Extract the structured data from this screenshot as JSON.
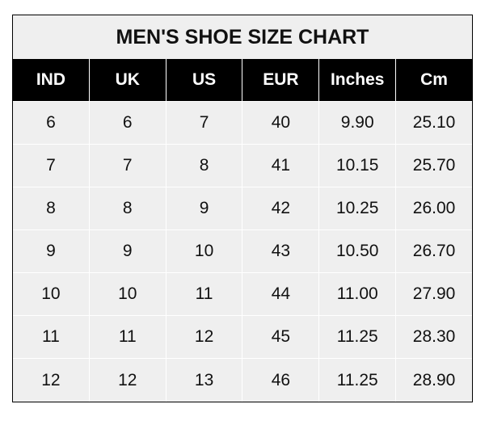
{
  "title": "MEN'S SHOE SIZE CHART",
  "headers": [
    "IND",
    "UK",
    "US",
    "EUR",
    "Inches",
    "Cm"
  ],
  "rows": [
    [
      "6",
      "6",
      "7",
      "40",
      "9.90",
      "25.10"
    ],
    [
      "7",
      "7",
      "8",
      "41",
      "10.15",
      "25.70"
    ],
    [
      "8",
      "8",
      "9",
      "42",
      "10.25",
      "26.00"
    ],
    [
      "9",
      "9",
      "10",
      "43",
      "10.50",
      "26.70"
    ],
    [
      "10",
      "10",
      "11",
      "44",
      "11.00",
      "27.90"
    ],
    [
      "11",
      "11",
      "12",
      "45",
      "11.25",
      "28.30"
    ],
    [
      "12",
      "12",
      "13",
      "46",
      "11.25",
      "28.90"
    ]
  ],
  "colors": {
    "header_bg": "#000000",
    "header_text": "#ffffff",
    "body_bg": "#efefef",
    "grid": "#ffffff"
  }
}
